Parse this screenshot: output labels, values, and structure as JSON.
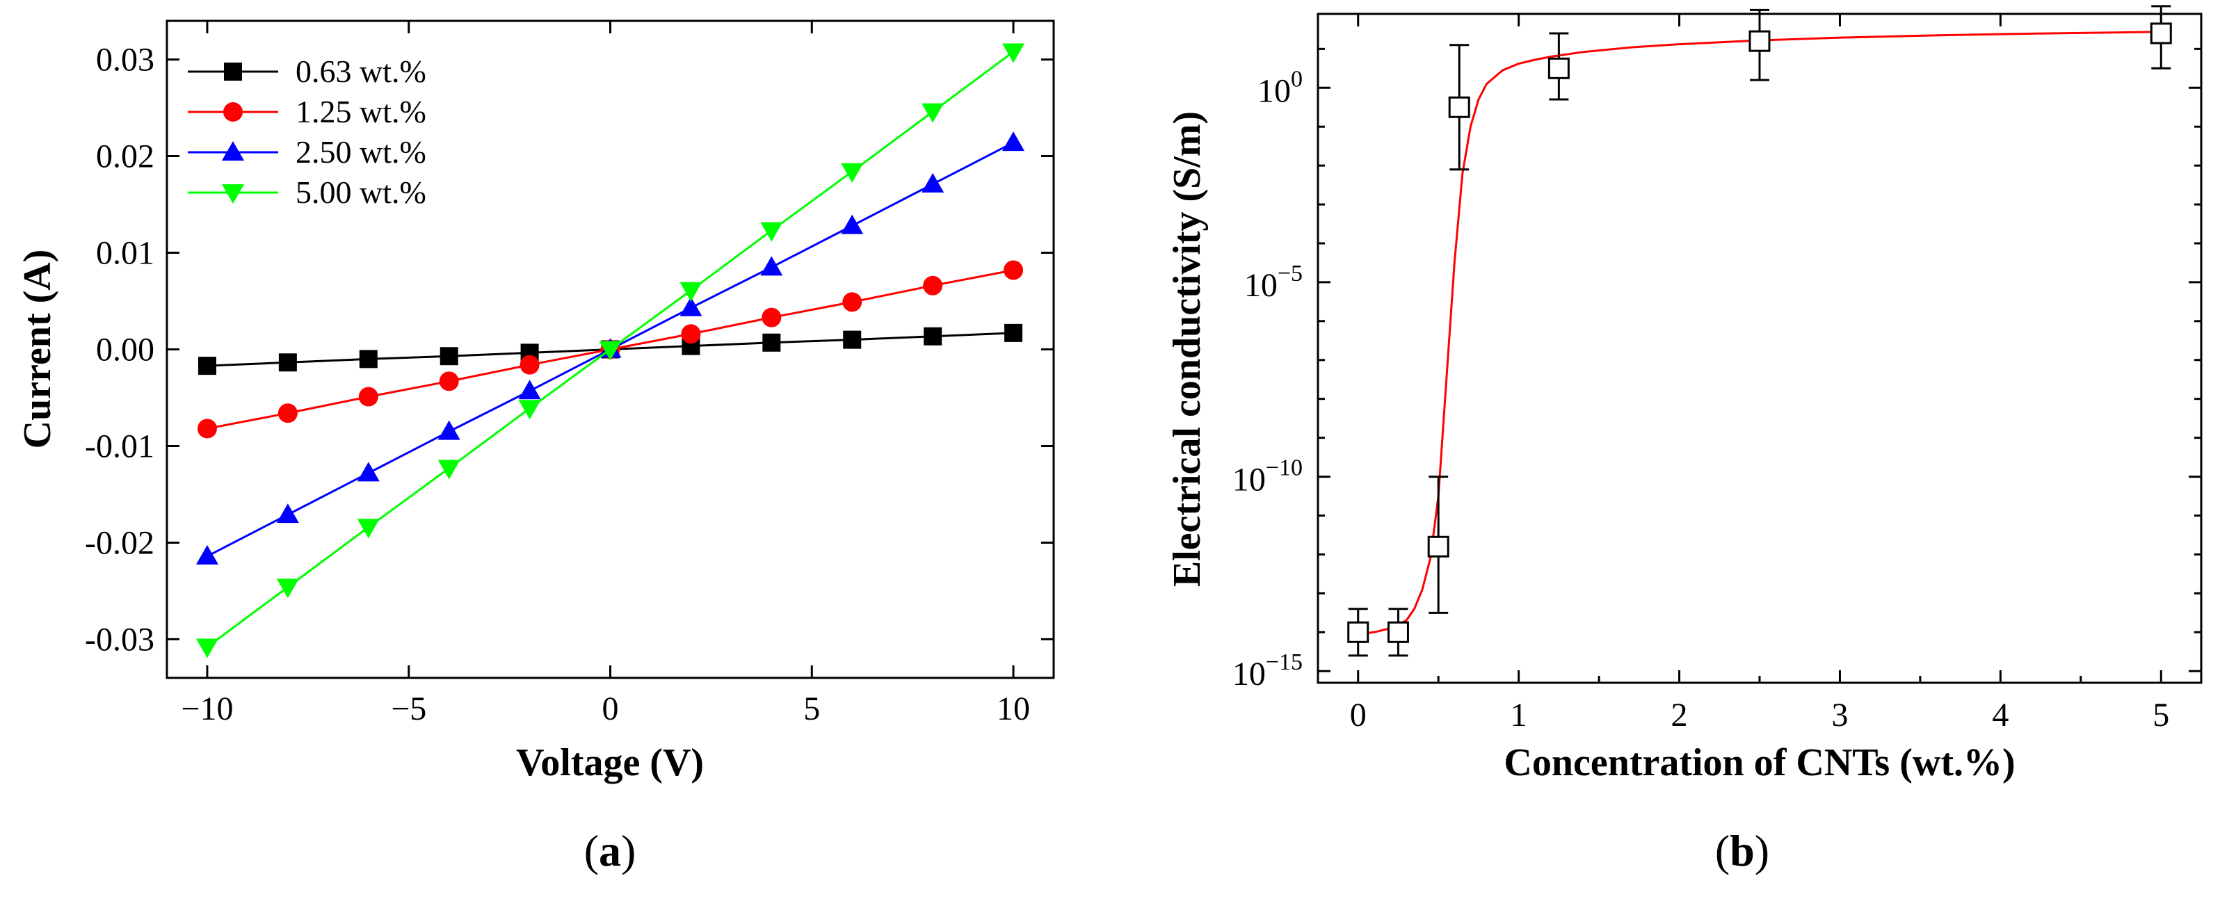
{
  "chart_data": [
    {
      "panel": "a",
      "type": "line",
      "title": "",
      "xlabel": "Voltage (V)",
      "ylabel": "Current (A)",
      "xlim": [
        -11,
        11
      ],
      "ylim": [
        -0.034,
        0.034
      ],
      "xticks": [
        -10,
        -5,
        0,
        5,
        10
      ],
      "xtick_labels": [
        "−10",
        "−5",
        "0",
        "5",
        "10"
      ],
      "yticks": [
        -0.03,
        -0.02,
        -0.01,
        0.0,
        0.01,
        0.02,
        0.03
      ],
      "ytick_labels": [
        "-0.03",
        "-0.02",
        "-0.01",
        "0.00",
        "0.01",
        "0.02",
        "0.03"
      ],
      "grid": false,
      "legend_position": "top-left",
      "x": [
        -10,
        -8,
        -6,
        -4,
        -2,
        0,
        2,
        4,
        6,
        8,
        10
      ],
      "series": [
        {
          "name": "0.63 wt.%",
          "color": "#000000",
          "marker": "square",
          "values": [
            -0.0017,
            -0.00135,
            -0.001,
            -0.0007,
            -0.00035,
            0,
            0.00035,
            0.0007,
            0.001,
            0.00135,
            0.0017
          ]
        },
        {
          "name": "1.25 wt.%",
          "color": "#ff0000",
          "marker": "circle",
          "values": [
            -0.0082,
            -0.0066,
            -0.0049,
            -0.0033,
            -0.0016,
            0,
            0.0016,
            0.0033,
            0.0049,
            0.0066,
            0.0082
          ]
        },
        {
          "name": "2.50 wt.%",
          "color": "#0000ff",
          "marker": "triangle-up",
          "values": [
            -0.0214,
            -0.0171,
            -0.0128,
            -0.0085,
            -0.0043,
            0,
            0.0043,
            0.0085,
            0.0128,
            0.0171,
            0.0214
          ]
        },
        {
          "name": "5.00 wt.%",
          "color": "#00ff00",
          "marker": "triangle-down",
          "values": [
            -0.0308,
            -0.0246,
            -0.0184,
            -0.0123,
            -0.0061,
            0,
            0.0061,
            0.0123,
            0.0184,
            0.0246,
            0.0308
          ]
        }
      ],
      "caption_prefix": "(",
      "caption_letter": "a",
      "caption_suffix": ")"
    },
    {
      "panel": "b",
      "type": "scatter",
      "title": "",
      "xlabel": "Concentration of CNTs (wt.%)",
      "ylabel": "Electrical conductivity (S/m)",
      "yscale": "log",
      "xlim": [
        -0.25,
        5.25
      ],
      "ylim_log10": [
        -15.3,
        1.9
      ],
      "xticks": [
        0,
        1,
        2,
        3,
        4,
        5
      ],
      "xtick_labels": [
        "0",
        "1",
        "2",
        "3",
        "4",
        "5"
      ],
      "yticks_log10": [
        -15,
        -10,
        -5,
        0
      ],
      "ytick_labels": [
        {
          "base": "10",
          "exp": "−15"
        },
        {
          "base": "10",
          "exp": "−10"
        },
        {
          "base": "10",
          "exp": "−5"
        },
        {
          "base": "10",
          "exp": "0"
        }
      ],
      "grid": false,
      "points": {
        "marker": "open-square",
        "x": [
          0,
          0.25,
          0.5,
          0.63,
          1.25,
          2.5,
          5.0
        ],
        "y_log10": [
          -14.0,
          -14.0,
          -11.8,
          -0.5,
          0.5,
          1.2,
          1.4
        ],
        "err_low_log10": [
          -14.6,
          -14.6,
          -13.5,
          -2.1,
          -0.3,
          0.2,
          0.5
        ],
        "err_high_log10": [
          -13.4,
          -13.4,
          -10.0,
          1.1,
          1.4,
          2.0,
          2.1
        ]
      },
      "fit": {
        "color": "#ff0000",
        "x": [
          0,
          0.1,
          0.2,
          0.3,
          0.35,
          0.4,
          0.45,
          0.5,
          0.55,
          0.6,
          0.65,
          0.7,
          0.75,
          0.8,
          0.9,
          1.0,
          1.1,
          1.2,
          1.4,
          1.7,
          2.0,
          2.5,
          3.0,
          3.5,
          4.0,
          4.5,
          5.0
        ],
        "y_log10": [
          -14.05,
          -14.0,
          -13.9,
          -13.7,
          -13.4,
          -12.9,
          -12.1,
          -10.5,
          -7.5,
          -4.5,
          -2.2,
          -1.0,
          -0.3,
          0.1,
          0.45,
          0.62,
          0.72,
          0.8,
          0.92,
          1.04,
          1.12,
          1.22,
          1.29,
          1.34,
          1.38,
          1.41,
          1.44
        ]
      },
      "caption_prefix": "(",
      "caption_letter": "b",
      "caption_suffix": ")"
    }
  ]
}
